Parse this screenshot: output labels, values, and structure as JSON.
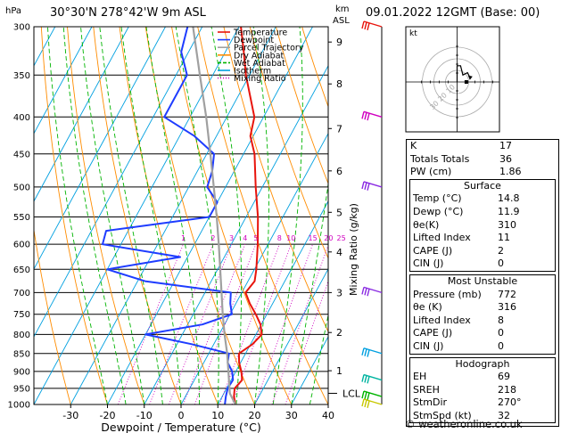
{
  "header": {
    "location": "30°30'N  278°42'W  9m  ASL",
    "datetime": "09.01.2022  12GMT  (Base: 00)"
  },
  "chart_data": {
    "type": "line",
    "title": "",
    "pressure_unit": "hPa",
    "height_unit_top": "km",
    "height_unit_bottom": "ASL",
    "xlabel": "Dewpoint / Temperature (°C)",
    "ylabel_right": "Mixing Ratio (g/kg)",
    "xlim": [
      -40,
      40
    ],
    "x_ticks": [
      -30,
      -20,
      -10,
      0,
      10,
      20,
      30,
      40
    ],
    "pressure_levels": [
      300,
      350,
      400,
      450,
      500,
      550,
      600,
      650,
      700,
      750,
      800,
      850,
      900,
      950,
      1000
    ],
    "height_ticks_km": [
      {
        "km": "1",
        "p": 898
      },
      {
        "km": "2",
        "p": 795
      },
      {
        "km": "3",
        "p": 700
      },
      {
        "km": "4",
        "p": 615
      },
      {
        "km": "5",
        "p": 542
      },
      {
        "km": "6",
        "p": 475
      },
      {
        "km": "7",
        "p": 415
      },
      {
        "km": "8",
        "p": 360
      },
      {
        "km": "9",
        "p": 315
      }
    ],
    "lcl_label": "LCL",
    "lcl_p": 965,
    "mixing_ratio_labels": [
      "1",
      "2",
      "3",
      "4",
      "5",
      "8",
      "10",
      "15",
      "20",
      "25"
    ],
    "legend": [
      {
        "name": "Temperature",
        "color": "#e8140c"
      },
      {
        "name": "Dewpoint",
        "color": "#1e3cff"
      },
      {
        "name": "Parcel Trajectory",
        "color": "#a0a0a0"
      },
      {
        "name": "Dry Adiabat",
        "color": "#ff8c00"
      },
      {
        "name": "Wet Adiabat",
        "color": "#00b400"
      },
      {
        "name": "Isotherm",
        "color": "#00a0e0"
      },
      {
        "name": "Mixing Ratio",
        "color": "#d000c0"
      }
    ],
    "series": [
      {
        "name": "Temperature",
        "color": "#e8140c",
        "points": [
          [
            1000,
            14.8
          ],
          [
            975,
            13.2
          ],
          [
            950,
            12.2
          ],
          [
            925,
            13.0
          ],
          [
            900,
            11.5
          ],
          [
            875,
            9.6
          ],
          [
            850,
            8.2
          ],
          [
            825,
            10.5
          ],
          [
            800,
            11.6
          ],
          [
            775,
            9.8
          ],
          [
            750,
            7.0
          ],
          [
            725,
            3.8
          ],
          [
            700,
            1.0
          ],
          [
            675,
            1.8
          ],
          [
            650,
            0.5
          ],
          [
            600,
            -2.8
          ],
          [
            550,
            -6.8
          ],
          [
            500,
            -11.8
          ],
          [
            450,
            -17.0
          ],
          [
            425,
            -20.8
          ],
          [
            400,
            -22.5
          ],
          [
            350,
            -31.0
          ],
          [
            325,
            -35.0
          ],
          [
            300,
            -39.5
          ]
        ]
      },
      {
        "name": "Dewpoint",
        "color": "#1e3cff",
        "points": [
          [
            1000,
            11.9
          ],
          [
            975,
            11.0
          ],
          [
            950,
            10.3
          ],
          [
            925,
            10.5
          ],
          [
            900,
            9.0
          ],
          [
            875,
            6.5
          ],
          [
            850,
            5.5
          ],
          [
            825,
            -6.0
          ],
          [
            800,
            -20.0
          ],
          [
            775,
            -6.0
          ],
          [
            750,
            0.5
          ],
          [
            725,
            -1.5
          ],
          [
            700,
            -3.0
          ],
          [
            675,
            -28.0
          ],
          [
            650,
            -40.0
          ],
          [
            625,
            -22.0
          ],
          [
            600,
            -45.0
          ],
          [
            575,
            -46.0
          ],
          [
            550,
            -20.0
          ],
          [
            525,
            -20.0
          ],
          [
            500,
            -25.0
          ],
          [
            475,
            -26.0
          ],
          [
            450,
            -28.0
          ],
          [
            425,
            -36.0
          ],
          [
            400,
            -47.0
          ],
          [
            375,
            -47.0
          ],
          [
            350,
            -47.0
          ],
          [
            325,
            -52.0
          ],
          [
            300,
            -54.0
          ]
        ]
      },
      {
        "name": "Parcel Trajectory",
        "color": "#a0a0a0",
        "points": [
          [
            1000,
            14.8
          ],
          [
            965,
            11.6
          ],
          [
            900,
            8.0
          ],
          [
            850,
            5.0
          ],
          [
            800,
            1.5
          ],
          [
            750,
            -2.0
          ],
          [
            700,
            -5.5
          ],
          [
            650,
            -9.3
          ],
          [
            600,
            -13.4
          ],
          [
            550,
            -18.0
          ],
          [
            500,
            -23.2
          ],
          [
            450,
            -29.0
          ],
          [
            400,
            -35.6
          ],
          [
            350,
            -43.5
          ],
          [
            300,
            -52.5
          ]
        ]
      }
    ],
    "wind_barbs": [
      {
        "p": 300,
        "color": "#e8140c"
      },
      {
        "p": 400,
        "color": "#d000c0"
      },
      {
        "p": 500,
        "color": "#8a2be2"
      },
      {
        "p": 700,
        "color": "#8a2be2"
      },
      {
        "p": 850,
        "color": "#00a0e0"
      },
      {
        "p": 925,
        "color": "#00b4a0"
      },
      {
        "p": 975,
        "color": "#00b400"
      },
      {
        "p": 1000,
        "color": "#c8c800"
      }
    ]
  },
  "hodograph": {
    "unit_label": "kt",
    "ring_labels": [
      "10",
      "20",
      "30"
    ],
    "trace": [
      [
        0,
        0
      ],
      [
        0,
        -14
      ],
      [
        3,
        -14
      ],
      [
        5,
        -6
      ],
      [
        9,
        -8
      ],
      [
        11,
        -4
      ]
    ]
  },
  "indices": {
    "rows": [
      {
        "k": "K",
        "v": "17"
      },
      {
        "k": "Totals Totals",
        "v": "36"
      },
      {
        "k": "PW (cm)",
        "v": "1.86"
      }
    ]
  },
  "surface": {
    "title": "Surface",
    "rows": [
      {
        "k": "Temp (°C)",
        "v": "14.8"
      },
      {
        "k": "Dewp (°C)",
        "v": "11.9"
      },
      {
        "k": "θe(K)",
        "v": "310"
      },
      {
        "k": "Lifted Index",
        "v": "11"
      },
      {
        "k": "CAPE (J)",
        "v": "2"
      },
      {
        "k": "CIN (J)",
        "v": "0"
      }
    ]
  },
  "most_unstable": {
    "title": "Most Unstable",
    "rows": [
      {
        "k": "Pressure (mb)",
        "v": "772"
      },
      {
        "k": "θe (K)",
        "v": "316"
      },
      {
        "k": "Lifted Index",
        "v": "8"
      },
      {
        "k": "CAPE (J)",
        "v": "0"
      },
      {
        "k": "CIN (J)",
        "v": "0"
      }
    ]
  },
  "hodograph_stats": {
    "title": "Hodograph",
    "rows": [
      {
        "k": "EH",
        "v": "69"
      },
      {
        "k": "SREH",
        "v": "218"
      },
      {
        "k": "StmDir",
        "v": "270°"
      },
      {
        "k": "StmSpd (kt)",
        "v": "32"
      }
    ]
  },
  "footer": {
    "copyright": "© weatheronline.co.uk"
  }
}
